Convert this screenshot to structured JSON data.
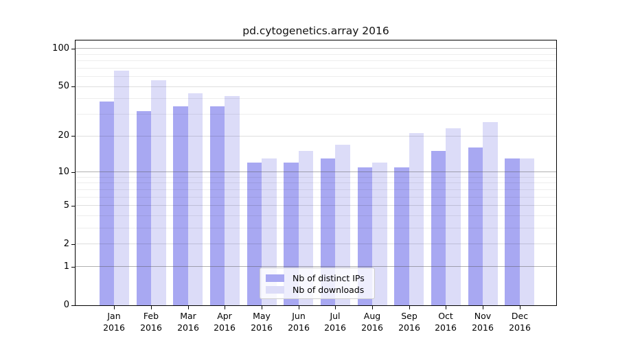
{
  "title": "pd.cytogenetics.array 2016",
  "colors": {
    "ips": "#a8a8f2",
    "downloads": "#dcdcf8",
    "spine": "#000000",
    "legend_border": "#cccccc"
  },
  "legend": {
    "items": [
      {
        "series": "ips",
        "label": "Nb of distinct IPs"
      },
      {
        "series": "downloads",
        "label": "Nb of downloads"
      }
    ]
  },
  "y_axis": {
    "scale": "log1p",
    "ticks": [
      {
        "label": "100",
        "value": 100
      },
      {
        "label": "50",
        "value": 50
      },
      {
        "label": "20",
        "value": 20
      },
      {
        "label": "10",
        "value": 10
      },
      {
        "label": "5",
        "value": 5
      },
      {
        "label": "2",
        "value": 2
      },
      {
        "label": "1",
        "value": 1
      },
      {
        "label": "0",
        "value": 0
      }
    ],
    "decade_values": [
      1,
      10,
      100
    ],
    "minor_values": [
      3,
      4,
      6,
      7,
      8,
      9,
      30,
      40,
      60,
      70,
      80,
      90
    ]
  },
  "x_axis": {
    "months": [
      {
        "month": "Jan",
        "year": "2016"
      },
      {
        "month": "Feb",
        "year": "2016"
      },
      {
        "month": "Mar",
        "year": "2016"
      },
      {
        "month": "Apr",
        "year": "2016"
      },
      {
        "month": "May",
        "year": "2016"
      },
      {
        "month": "Jun",
        "year": "2016"
      },
      {
        "month": "Jul",
        "year": "2016"
      },
      {
        "month": "Aug",
        "year": "2016"
      },
      {
        "month": "Sep",
        "year": "2016"
      },
      {
        "month": "Oct",
        "year": "2016"
      },
      {
        "month": "Nov",
        "year": "2016"
      },
      {
        "month": "Dec",
        "year": "2016"
      }
    ]
  },
  "chart_data": {
    "type": "bar",
    "title": "pd.cytogenetics.array 2016",
    "categories": [
      "Jan 2016",
      "Feb 2016",
      "Mar 2016",
      "Apr 2016",
      "May 2016",
      "Jun 2016",
      "Jul 2016",
      "Aug 2016",
      "Sep 2016",
      "Oct 2016",
      "Nov 2016",
      "Dec 2016"
    ],
    "series": [
      {
        "name": "Nb of distinct IPs",
        "color": "#a8a8f2",
        "values": [
          38,
          32,
          35,
          35,
          12,
          12,
          13,
          11,
          11,
          15,
          16,
          13
        ]
      },
      {
        "name": "Nb of downloads",
        "color": "#dcdcf8",
        "values": [
          67,
          56,
          44,
          42,
          13,
          15,
          17,
          12,
          21,
          23,
          26,
          13
        ]
      }
    ],
    "xlabel": "",
    "ylabel": "",
    "yscale": "log1p",
    "yticks": [
      0,
      1,
      2,
      5,
      10,
      20,
      50,
      100
    ],
    "ylim": [
      0,
      116
    ],
    "grid": true,
    "grid_on_top_of_bars": true,
    "legend_position": "lower center"
  }
}
